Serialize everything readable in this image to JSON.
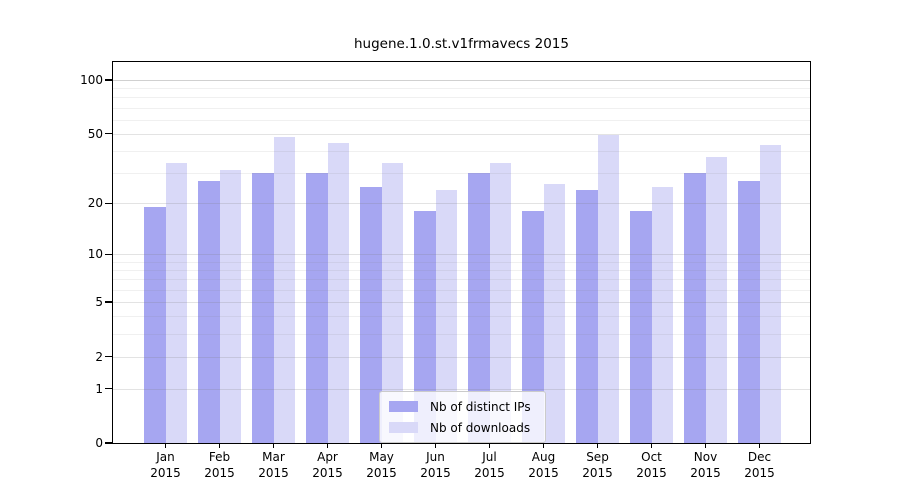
{
  "chart_data": {
    "type": "bar",
    "title": "hugene.1.0.st.v1frmavecs 2015",
    "year": "2015",
    "categories": [
      "Jan",
      "Feb",
      "Mar",
      "Apr",
      "May",
      "Jun",
      "Jul",
      "Aug",
      "Sep",
      "Oct",
      "Nov",
      "Dec"
    ],
    "series": [
      {
        "name": "Nb of distinct IPs",
        "color": "#a6a6f1",
        "values": [
          19,
          27,
          30,
          30,
          25,
          18,
          30,
          18,
          24,
          18,
          30,
          27
        ]
      },
      {
        "name": "Nb of downloads",
        "color": "#d9d9f8",
        "values": [
          34,
          31,
          48,
          44,
          34,
          24,
          34,
          26,
          49,
          25,
          37,
          43
        ]
      }
    ],
    "yaxis": {
      "scale": "log1p",
      "major_ticks": [
        0,
        1,
        2,
        5,
        10,
        20,
        50,
        100
      ],
      "minor_gridlines": [
        3,
        4,
        6,
        7,
        8,
        9,
        30,
        40,
        60,
        70,
        80,
        90
      ],
      "top_value": 126
    },
    "xlabel": "",
    "ylabel": "",
    "grid": "horizontal",
    "legend_position": "bottom-center",
    "background_color": "#ffffff",
    "axis_color": "#000000"
  }
}
